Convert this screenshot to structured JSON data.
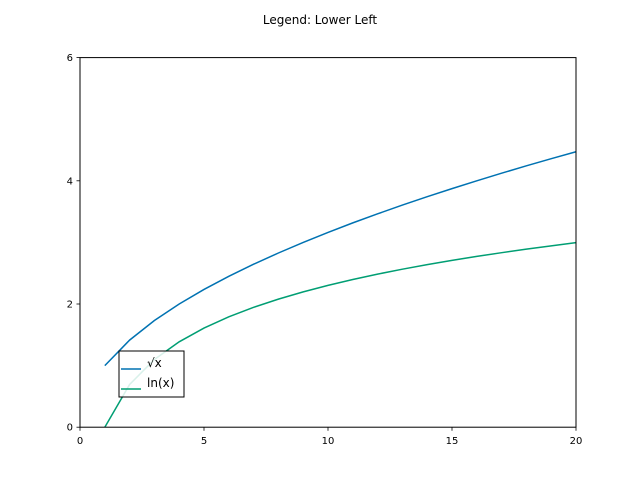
{
  "chart_data": {
    "type": "line",
    "title": "Legend: Lower Left",
    "xlabel": "",
    "ylabel": "",
    "xlim": [
      0,
      20
    ],
    "ylim": [
      0,
      6
    ],
    "xticks": [
      0,
      5,
      10,
      15,
      20
    ],
    "xtick_labels": [
      "0",
      "5",
      "10",
      "15",
      "20"
    ],
    "yticks": [
      0,
      2,
      4,
      6
    ],
    "ytick_labels": [
      "0",
      "2",
      "4",
      "6"
    ],
    "grid": false,
    "legend_position": "lower-left",
    "x": [
      1,
      2,
      3,
      4,
      5,
      6,
      7,
      8,
      9,
      10,
      11,
      12,
      13,
      14,
      15,
      16,
      17,
      18,
      19,
      20
    ],
    "series": [
      {
        "name": "√x",
        "color": "#0072B2",
        "values": [
          1.0,
          1.414,
          1.732,
          2.0,
          2.236,
          2.449,
          2.646,
          2.828,
          3.0,
          3.162,
          3.317,
          3.464,
          3.606,
          3.742,
          3.873,
          4.0,
          4.123,
          4.243,
          4.359,
          4.472
        ]
      },
      {
        "name": "ln(x)",
        "color": "#009E73",
        "values": [
          0.0,
          0.693,
          1.099,
          1.386,
          1.609,
          1.792,
          1.946,
          2.079,
          2.197,
          2.303,
          2.398,
          2.485,
          2.565,
          2.639,
          2.708,
          2.773,
          2.833,
          2.89,
          2.944,
          2.996
        ]
      }
    ]
  }
}
